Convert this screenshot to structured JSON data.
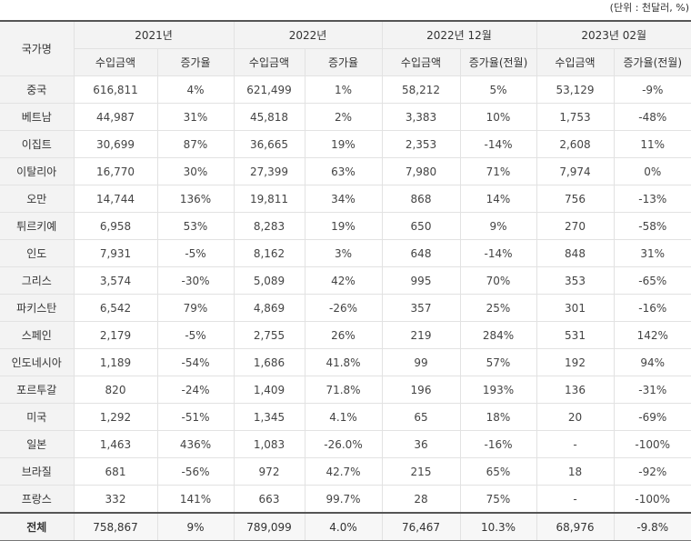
{
  "unit_note": "(단위 : 천달러, %)",
  "header": {
    "country": "국가명",
    "periods": [
      "2021년",
      "2022년",
      "2022년 12월",
      "2023년 02월"
    ],
    "sub": [
      "수입금액",
      "증가율",
      "수입금액",
      "증가율",
      "수입금액",
      "증가율(전월)",
      "수입금액",
      "증가율(전월)"
    ]
  },
  "rows": [
    {
      "country": "중국",
      "cells": [
        "616,811",
        "4%",
        "621,499",
        "1%",
        "58,212",
        "5%",
        "53,129",
        "-9%"
      ]
    },
    {
      "country": "베트남",
      "cells": [
        "44,987",
        "31%",
        "45,818",
        "2%",
        "3,383",
        "10%",
        "1,753",
        "-48%"
      ]
    },
    {
      "country": "이집트",
      "cells": [
        "30,699",
        "87%",
        "36,665",
        "19%",
        "2,353",
        "-14%",
        "2,608",
        "11%"
      ]
    },
    {
      "country": "이탈리아",
      "cells": [
        "16,770",
        "30%",
        "27,399",
        "63%",
        "7,980",
        "71%",
        "7,974",
        "0%"
      ]
    },
    {
      "country": "오만",
      "cells": [
        "14,744",
        "136%",
        "19,811",
        "34%",
        "868",
        "14%",
        "756",
        "-13%"
      ]
    },
    {
      "country": "튀르키예",
      "cells": [
        "6,958",
        "53%",
        "8,283",
        "19%",
        "650",
        "9%",
        "270",
        "-58%"
      ]
    },
    {
      "country": "인도",
      "cells": [
        "7,931",
        "-5%",
        "8,162",
        "3%",
        "648",
        "-14%",
        "848",
        "31%"
      ]
    },
    {
      "country": "그리스",
      "cells": [
        "3,574",
        "-30%",
        "5,089",
        "42%",
        "995",
        "70%",
        "353",
        "-65%"
      ]
    },
    {
      "country": "파키스탄",
      "cells": [
        "6,542",
        "79%",
        "4,869",
        "-26%",
        "357",
        "25%",
        "301",
        "-16%"
      ]
    },
    {
      "country": "스페인",
      "cells": [
        "2,179",
        "-5%",
        "2,755",
        "26%",
        "219",
        "284%",
        "531",
        "142%"
      ]
    },
    {
      "country": "인도네시아",
      "cells": [
        "1,189",
        "-54%",
        "1,686",
        "41.8%",
        "99",
        "57%",
        "192",
        "94%"
      ]
    },
    {
      "country": "포르투갈",
      "cells": [
        "820",
        "-24%",
        "1,409",
        "71.8%",
        "196",
        "193%",
        "136",
        "-31%"
      ]
    },
    {
      "country": "미국",
      "cells": [
        "1,292",
        "-51%",
        "1,345",
        "4.1%",
        "65",
        "18%",
        "20",
        "-69%"
      ]
    },
    {
      "country": "일본",
      "cells": [
        "1,463",
        "436%",
        "1,083",
        "-26.0%",
        "36",
        "-16%",
        "-",
        "-100%"
      ]
    },
    {
      "country": "브라질",
      "cells": [
        "681",
        "-56%",
        "972",
        "42.7%",
        "215",
        "65%",
        "18",
        "-92%"
      ]
    },
    {
      "country": "프랑스",
      "cells": [
        "332",
        "141%",
        "663",
        "99.7%",
        "28",
        "75%",
        "-",
        "-100%"
      ]
    }
  ],
  "total": {
    "country": "전체",
    "cells": [
      "758,867",
      "9%",
      "789,099",
      "4.0%",
      "76,467",
      "10.3%",
      "68,976",
      "-9.8%"
    ]
  }
}
